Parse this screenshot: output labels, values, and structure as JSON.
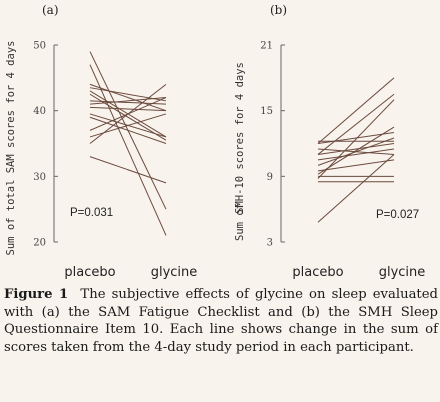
{
  "chart_data": [
    {
      "type": "line",
      "panel_label": "(a)",
      "ylabel": "Sum of total SAM scores for 4 days",
      "categories": [
        "placebo",
        "glycine"
      ],
      "ylim": [
        20,
        50
      ],
      "yticks": [
        20,
        30,
        40,
        50
      ],
      "annotation": "P=0.031",
      "series": [
        {
          "values": [
            49,
            25
          ]
        },
        {
          "values": [
            47,
            21
          ]
        },
        {
          "values": [
            44,
            40
          ]
        },
        {
          "values": [
            43.5,
            41.5
          ]
        },
        {
          "values": [
            43,
            36
          ]
        },
        {
          "values": [
            42.5,
            35.5
          ]
        },
        {
          "values": [
            41.5,
            41
          ]
        },
        {
          "values": [
            41,
            42
          ]
        },
        {
          "values": [
            40.5,
            40
          ]
        },
        {
          "values": [
            39.5,
            36
          ]
        },
        {
          "values": [
            39,
            35
          ]
        },
        {
          "values": [
            37,
            42
          ]
        },
        {
          "values": [
            36,
            39.5
          ]
        },
        {
          "values": [
            35,
            44
          ]
        },
        {
          "values": [
            33,
            29
          ]
        }
      ]
    },
    {
      "type": "line",
      "panel_label": "(b)",
      "ylabel": "SMH-10 scores for 4 days",
      "ylabel_prefix": "Sum of",
      "categories": [
        "placebo",
        "glycine"
      ],
      "ylim": [
        3,
        21
      ],
      "yticks": [
        3,
        9,
        15,
        21
      ],
      "annotation": "P=0.027",
      "series": [
        {
          "values": [
            12.2,
            12.2
          ]
        },
        {
          "values": [
            12.0,
            13.0
          ]
        },
        {
          "values": [
            11.5,
            11.0
          ]
        },
        {
          "values": [
            11.0,
            12.0
          ]
        },
        {
          "values": [
            10.5,
            11.5
          ]
        },
        {
          "values": [
            10.0,
            12.5
          ]
        },
        {
          "values": [
            9.5,
            10.5
          ]
        },
        {
          "values": [
            9.2,
            13.5
          ]
        },
        {
          "values": [
            9.0,
            9.0
          ]
        },
        {
          "values": [
            8.8,
            16.0
          ]
        },
        {
          "values": [
            8.5,
            8.5
          ]
        },
        {
          "values": [
            12.0,
            18.0
          ]
        },
        {
          "values": [
            4.8,
            11.0
          ]
        },
        {
          "values": [
            11.0,
            16.5
          ]
        }
      ]
    }
  ],
  "caption": {
    "figure_label": "Figure 1",
    "text": "The subjective effects of glycine on sleep evaluated with (a) the SAM Fatigue Checklist and (b) the SMH Sleep Questionnaire Item 10. Each line shows change in the sum of scores taken from the 4-day study period in each participant."
  },
  "colors": {
    "background": "#f8f3ec",
    "line": "#6b4a3e",
    "axis": "#666666"
  }
}
